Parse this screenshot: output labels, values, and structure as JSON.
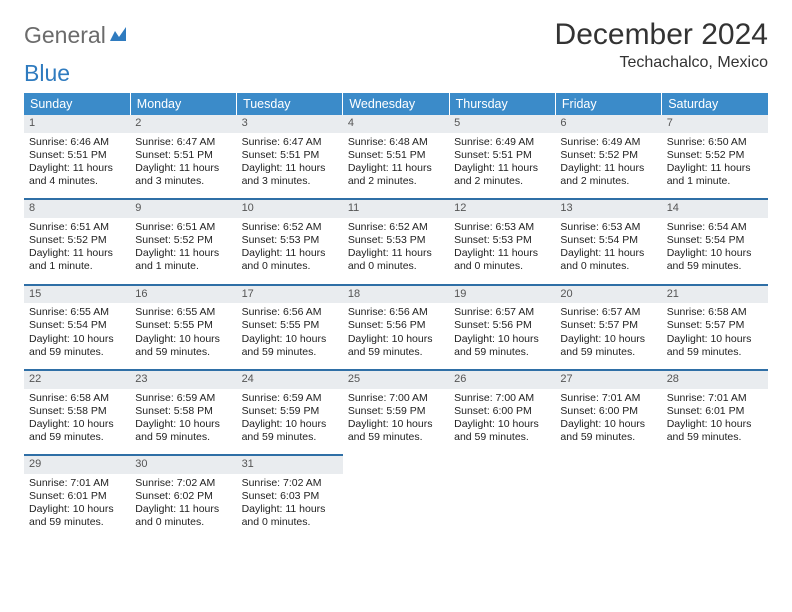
{
  "logo": {
    "word1": "General",
    "word2": "Blue"
  },
  "title": "December 2024",
  "location": "Techachalco, Mexico",
  "colors": {
    "header_bg": "#3b8bc9",
    "header_text": "#ffffff",
    "row_border": "#2f6fa6",
    "daynum_bg": "#e9ecef",
    "logo_gray": "#6b6b6b",
    "logo_blue": "#2f7bbf"
  },
  "weekdays": [
    "Sunday",
    "Monday",
    "Tuesday",
    "Wednesday",
    "Thursday",
    "Friday",
    "Saturday"
  ],
  "weeks": [
    [
      {
        "n": "1",
        "sr": "Sunrise: 6:46 AM",
        "ss": "Sunset: 5:51 PM",
        "dl": "Daylight: 11 hours and 4 minutes."
      },
      {
        "n": "2",
        "sr": "Sunrise: 6:47 AM",
        "ss": "Sunset: 5:51 PM",
        "dl": "Daylight: 11 hours and 3 minutes."
      },
      {
        "n": "3",
        "sr": "Sunrise: 6:47 AM",
        "ss": "Sunset: 5:51 PM",
        "dl": "Daylight: 11 hours and 3 minutes."
      },
      {
        "n": "4",
        "sr": "Sunrise: 6:48 AM",
        "ss": "Sunset: 5:51 PM",
        "dl": "Daylight: 11 hours and 2 minutes."
      },
      {
        "n": "5",
        "sr": "Sunrise: 6:49 AM",
        "ss": "Sunset: 5:51 PM",
        "dl": "Daylight: 11 hours and 2 minutes."
      },
      {
        "n": "6",
        "sr": "Sunrise: 6:49 AM",
        "ss": "Sunset: 5:52 PM",
        "dl": "Daylight: 11 hours and 2 minutes."
      },
      {
        "n": "7",
        "sr": "Sunrise: 6:50 AM",
        "ss": "Sunset: 5:52 PM",
        "dl": "Daylight: 11 hours and 1 minute."
      }
    ],
    [
      {
        "n": "8",
        "sr": "Sunrise: 6:51 AM",
        "ss": "Sunset: 5:52 PM",
        "dl": "Daylight: 11 hours and 1 minute."
      },
      {
        "n": "9",
        "sr": "Sunrise: 6:51 AM",
        "ss": "Sunset: 5:52 PM",
        "dl": "Daylight: 11 hours and 1 minute."
      },
      {
        "n": "10",
        "sr": "Sunrise: 6:52 AM",
        "ss": "Sunset: 5:53 PM",
        "dl": "Daylight: 11 hours and 0 minutes."
      },
      {
        "n": "11",
        "sr": "Sunrise: 6:52 AM",
        "ss": "Sunset: 5:53 PM",
        "dl": "Daylight: 11 hours and 0 minutes."
      },
      {
        "n": "12",
        "sr": "Sunrise: 6:53 AM",
        "ss": "Sunset: 5:53 PM",
        "dl": "Daylight: 11 hours and 0 minutes."
      },
      {
        "n": "13",
        "sr": "Sunrise: 6:53 AM",
        "ss": "Sunset: 5:54 PM",
        "dl": "Daylight: 11 hours and 0 minutes."
      },
      {
        "n": "14",
        "sr": "Sunrise: 6:54 AM",
        "ss": "Sunset: 5:54 PM",
        "dl": "Daylight: 10 hours and 59 minutes."
      }
    ],
    [
      {
        "n": "15",
        "sr": "Sunrise: 6:55 AM",
        "ss": "Sunset: 5:54 PM",
        "dl": "Daylight: 10 hours and 59 minutes."
      },
      {
        "n": "16",
        "sr": "Sunrise: 6:55 AM",
        "ss": "Sunset: 5:55 PM",
        "dl": "Daylight: 10 hours and 59 minutes."
      },
      {
        "n": "17",
        "sr": "Sunrise: 6:56 AM",
        "ss": "Sunset: 5:55 PM",
        "dl": "Daylight: 10 hours and 59 minutes."
      },
      {
        "n": "18",
        "sr": "Sunrise: 6:56 AM",
        "ss": "Sunset: 5:56 PM",
        "dl": "Daylight: 10 hours and 59 minutes."
      },
      {
        "n": "19",
        "sr": "Sunrise: 6:57 AM",
        "ss": "Sunset: 5:56 PM",
        "dl": "Daylight: 10 hours and 59 minutes."
      },
      {
        "n": "20",
        "sr": "Sunrise: 6:57 AM",
        "ss": "Sunset: 5:57 PM",
        "dl": "Daylight: 10 hours and 59 minutes."
      },
      {
        "n": "21",
        "sr": "Sunrise: 6:58 AM",
        "ss": "Sunset: 5:57 PM",
        "dl": "Daylight: 10 hours and 59 minutes."
      }
    ],
    [
      {
        "n": "22",
        "sr": "Sunrise: 6:58 AM",
        "ss": "Sunset: 5:58 PM",
        "dl": "Daylight: 10 hours and 59 minutes."
      },
      {
        "n": "23",
        "sr": "Sunrise: 6:59 AM",
        "ss": "Sunset: 5:58 PM",
        "dl": "Daylight: 10 hours and 59 minutes."
      },
      {
        "n": "24",
        "sr": "Sunrise: 6:59 AM",
        "ss": "Sunset: 5:59 PM",
        "dl": "Daylight: 10 hours and 59 minutes."
      },
      {
        "n": "25",
        "sr": "Sunrise: 7:00 AM",
        "ss": "Sunset: 5:59 PM",
        "dl": "Daylight: 10 hours and 59 minutes."
      },
      {
        "n": "26",
        "sr": "Sunrise: 7:00 AM",
        "ss": "Sunset: 6:00 PM",
        "dl": "Daylight: 10 hours and 59 minutes."
      },
      {
        "n": "27",
        "sr": "Sunrise: 7:01 AM",
        "ss": "Sunset: 6:00 PM",
        "dl": "Daylight: 10 hours and 59 minutes."
      },
      {
        "n": "28",
        "sr": "Sunrise: 7:01 AM",
        "ss": "Sunset: 6:01 PM",
        "dl": "Daylight: 10 hours and 59 minutes."
      }
    ],
    [
      {
        "n": "29",
        "sr": "Sunrise: 7:01 AM",
        "ss": "Sunset: 6:01 PM",
        "dl": "Daylight: 10 hours and 59 minutes."
      },
      {
        "n": "30",
        "sr": "Sunrise: 7:02 AM",
        "ss": "Sunset: 6:02 PM",
        "dl": "Daylight: 11 hours and 0 minutes."
      },
      {
        "n": "31",
        "sr": "Sunrise: 7:02 AM",
        "ss": "Sunset: 6:03 PM",
        "dl": "Daylight: 11 hours and 0 minutes."
      },
      {
        "empty": true
      },
      {
        "empty": true
      },
      {
        "empty": true
      },
      {
        "empty": true
      }
    ]
  ]
}
